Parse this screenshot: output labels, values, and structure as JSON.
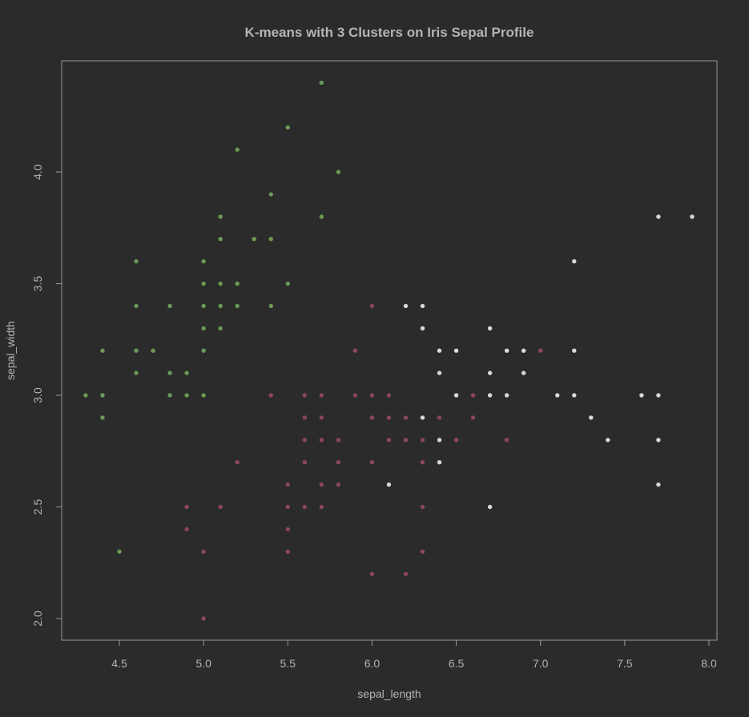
{
  "chart_data": {
    "type": "scatter",
    "title": "K-means with 3 Clusters on Iris Sepal Profile",
    "xlabel": "sepal_length",
    "ylabel": "sepal_width",
    "xlim": [
      4.2,
      8.05
    ],
    "ylim": [
      1.9,
      4.5
    ],
    "xticks": [
      "4.5",
      "5.0",
      "5.5",
      "6.0",
      "6.5",
      "7.0",
      "7.5",
      "8.0"
    ],
    "yticks": [
      "2.0",
      "2.5",
      "3.0",
      "3.5",
      "4.0"
    ],
    "grid": false,
    "legend": "none",
    "colors": {
      "background": "#2b2b2b",
      "frame": "#9a9a9a",
      "text": "#b4b4b4",
      "title": "#b4b4b4",
      "cluster_green": "#6b9a57",
      "cluster_red": "#8c4560",
      "cluster_white": "#d9d9d9"
    },
    "series": [
      {
        "color": "#6b9a57",
        "points": [
          [
            4.3,
            3.0
          ],
          [
            4.4,
            3.2
          ],
          [
            4.4,
            3.0
          ],
          [
            4.4,
            2.9
          ],
          [
            4.5,
            2.3
          ],
          [
            4.6,
            3.6
          ],
          [
            4.6,
            3.4
          ],
          [
            4.6,
            3.2
          ],
          [
            4.6,
            3.1
          ],
          [
            4.7,
            3.2
          ],
          [
            4.8,
            3.4
          ],
          [
            4.8,
            3.1
          ],
          [
            4.8,
            3.0
          ],
          [
            4.9,
            3.1
          ],
          [
            4.9,
            3.0
          ],
          [
            5.0,
            3.6
          ],
          [
            5.0,
            3.5
          ],
          [
            5.0,
            3.4
          ],
          [
            5.0,
            3.3
          ],
          [
            5.0,
            3.2
          ],
          [
            5.0,
            3.0
          ],
          [
            5.1,
            3.8
          ],
          [
            5.1,
            3.7
          ],
          [
            5.1,
            3.5
          ],
          [
            5.1,
            3.4
          ],
          [
            5.1,
            3.3
          ],
          [
            5.2,
            4.1
          ],
          [
            5.2,
            3.5
          ],
          [
            5.2,
            3.4
          ],
          [
            5.3,
            3.7
          ],
          [
            5.4,
            3.9
          ],
          [
            5.4,
            3.7
          ],
          [
            5.4,
            3.4
          ],
          [
            5.5,
            4.2
          ],
          [
            5.5,
            3.5
          ],
          [
            5.7,
            4.4
          ],
          [
            5.7,
            3.8
          ],
          [
            5.8,
            4.0
          ]
        ]
      },
      {
        "color": "#8c4560",
        "points": [
          [
            4.9,
            2.5
          ],
          [
            4.9,
            2.4
          ],
          [
            5.0,
            2.3
          ],
          [
            5.0,
            2.0
          ],
          [
            5.1,
            2.5
          ],
          [
            5.2,
            2.7
          ],
          [
            5.4,
            3.0
          ],
          [
            5.5,
            2.6
          ],
          [
            5.5,
            2.5
          ],
          [
            5.5,
            2.4
          ],
          [
            5.5,
            2.3
          ],
          [
            5.6,
            3.0
          ],
          [
            5.6,
            2.9
          ],
          [
            5.6,
            2.8
          ],
          [
            5.6,
            2.7
          ],
          [
            5.6,
            2.5
          ],
          [
            5.7,
            3.0
          ],
          [
            5.7,
            2.9
          ],
          [
            5.7,
            2.8
          ],
          [
            5.7,
            2.6
          ],
          [
            5.7,
            2.5
          ],
          [
            5.8,
            2.8
          ],
          [
            5.8,
            2.7
          ],
          [
            5.8,
            2.6
          ],
          [
            5.9,
            3.2
          ],
          [
            5.9,
            3.0
          ],
          [
            6.0,
            3.4
          ],
          [
            6.0,
            3.0
          ],
          [
            6.0,
            2.9
          ],
          [
            6.0,
            2.7
          ],
          [
            6.0,
            2.2
          ],
          [
            6.1,
            3.0
          ],
          [
            6.1,
            2.9
          ],
          [
            6.1,
            2.8
          ],
          [
            6.2,
            2.9
          ],
          [
            6.2,
            2.8
          ],
          [
            6.2,
            2.2
          ],
          [
            6.3,
            2.8
          ],
          [
            6.3,
            2.7
          ],
          [
            6.3,
            2.5
          ],
          [
            6.3,
            2.3
          ],
          [
            6.4,
            2.9
          ],
          [
            6.5,
            2.8
          ],
          [
            6.6,
            3.0
          ],
          [
            6.6,
            2.9
          ],
          [
            6.8,
            2.8
          ],
          [
            7.0,
            3.2
          ]
        ]
      },
      {
        "color": "#d9d9d9",
        "points": [
          [
            6.1,
            2.6
          ],
          [
            6.2,
            3.4
          ],
          [
            6.3,
            3.4
          ],
          [
            6.3,
            3.3
          ],
          [
            6.3,
            2.9
          ],
          [
            6.4,
            3.2
          ],
          [
            6.4,
            3.1
          ],
          [
            6.4,
            2.8
          ],
          [
            6.4,
            2.7
          ],
          [
            6.5,
            3.2
          ],
          [
            6.5,
            3.0
          ],
          [
            6.7,
            3.3
          ],
          [
            6.7,
            3.1
          ],
          [
            6.7,
            3.0
          ],
          [
            6.7,
            2.5
          ],
          [
            6.8,
            3.2
          ],
          [
            6.8,
            3.0
          ],
          [
            6.9,
            3.2
          ],
          [
            6.9,
            3.1
          ],
          [
            7.1,
            3.0
          ],
          [
            7.2,
            3.6
          ],
          [
            7.2,
            3.2
          ],
          [
            7.2,
            3.0
          ],
          [
            7.3,
            2.9
          ],
          [
            7.4,
            2.8
          ],
          [
            7.6,
            3.0
          ],
          [
            7.7,
            3.8
          ],
          [
            7.7,
            3.0
          ],
          [
            7.7,
            2.8
          ],
          [
            7.7,
            2.6
          ],
          [
            7.9,
            3.8
          ]
        ]
      }
    ]
  }
}
